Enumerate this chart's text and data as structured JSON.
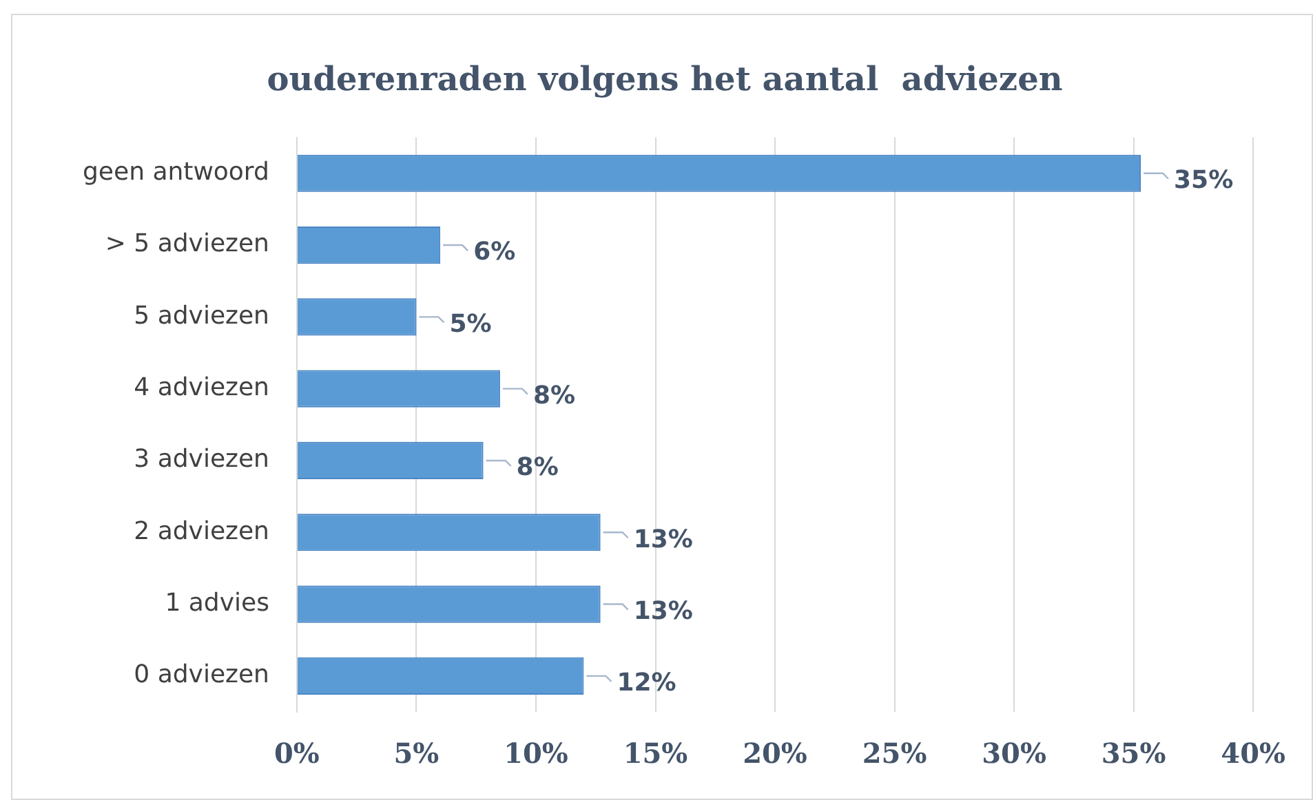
{
  "chart_data": {
    "type": "bar",
    "orientation": "horizontal",
    "title": "ouderenraden volgens het aantal  adviezen",
    "categories": [
      "geen antwoord",
      "> 5 adviezen",
      "5 adviezen",
      "4 adviezen",
      "3 adviezen",
      "2 adviezen",
      "1 advies",
      "0 adviezen"
    ],
    "values": [
      35.3,
      6.0,
      5.0,
      8.5,
      7.8,
      12.7,
      12.7,
      12.0
    ],
    "value_labels": [
      "35%",
      "6%",
      "5%",
      "8%",
      "8%",
      "13%",
      "13%",
      "12%"
    ],
    "color": "#5b9bd5",
    "xlim": [
      0,
      40
    ],
    "xticks": [
      {
        "value": 0,
        "label": "0%"
      },
      {
        "value": 5,
        "label": "5%"
      },
      {
        "value": 10,
        "label": "10%"
      },
      {
        "value": 15,
        "label": "15%"
      },
      {
        "value": 20,
        "label": "20%"
      },
      {
        "value": 25,
        "label": "25%"
      },
      {
        "value": 30,
        "label": "30%"
      },
      {
        "value": 35,
        "label": "35%"
      },
      {
        "value": 40,
        "label": "40%"
      }
    ],
    "grid": "x",
    "legend": false
  }
}
